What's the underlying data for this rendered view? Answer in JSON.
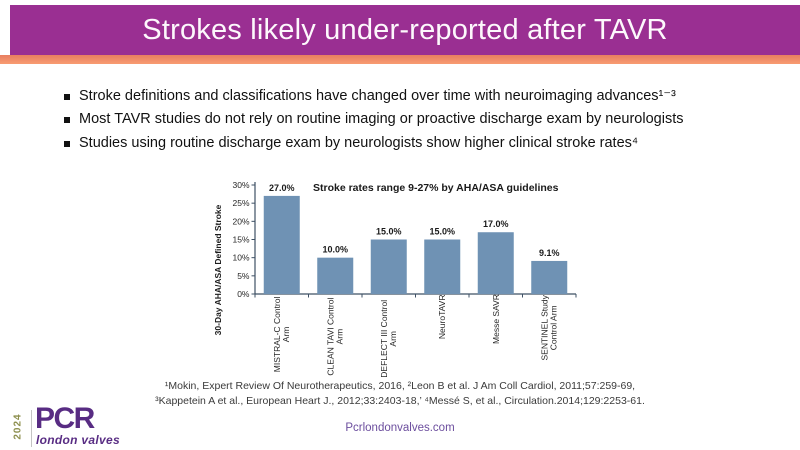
{
  "slide": {
    "title": "Strokes likely under-reported after TAVR",
    "bullets": [
      "Stroke definitions and classifications have changed over time with neuroimaging advances¹⁻³",
      "Most TAVR studies do not rely on routine imaging or proactive discharge exam by neurologists",
      "Studies using routine discharge exam by neurologists show higher clinical stroke rates⁴"
    ],
    "references": [
      "¹Mokin, Expert Review Of Neurotherapeutics, 2016, ²Leon B et al. J Am Coll Cardiol, 2011;57:259-69,",
      "³Kappetein A et al., European Heart J., 2012;33:2403-18,’ ⁴Messé S, et al., Circulation.2014;129:2253-61."
    ],
    "footer_link": "Pcrlondonvalves.com",
    "logo": {
      "year": "2024",
      "brand": "PCR",
      "sub": "london valves"
    }
  },
  "colors": {
    "header_bg": "#9A2F92",
    "accent_strip_top": "#E87E60",
    "accent_strip_bottom": "#F89C72",
    "bar_fill": "#6F92B4",
    "axis": "#3E5064",
    "logo_purple": "#582C83",
    "logo_year": "#8D8F4E",
    "footer_link": "#6C4E9E"
  },
  "chart_data": {
    "type": "bar",
    "title": "Stroke rates range 9-27% by AHA/ASA guidelines",
    "ylabel": "30-Day AHA/ASA Defined Stroke",
    "xlabel": "",
    "categories": [
      "MISTRAL-C Control Arm",
      "CLEAN TAVI Control Arm",
      "DEFLECT III Control Arm",
      "NeuroTAVR",
      "Messe SAVR",
      "SENTINEL Study Control Arm"
    ],
    "category_lines": [
      [
        "MISTRAL-C Control",
        "Arm"
      ],
      [
        "CLEAN TAVI Control",
        "Arm"
      ],
      [
        "DEFLECT III Control",
        "Arm"
      ],
      [
        "NeuroTAVR"
      ],
      [
        "Messe SAVR"
      ],
      [
        "SENTINEL Study",
        "Control Arm"
      ]
    ],
    "values": [
      27.0,
      10.0,
      15.0,
      15.0,
      17.0,
      9.1
    ],
    "value_labels": [
      "27.0%",
      "10.0%",
      "15.0%",
      "15.0%",
      "17.0%",
      "9.1%"
    ],
    "ylim": [
      0,
      30
    ],
    "ytick_step": 5,
    "ytick_labels": [
      "0%",
      "5%",
      "10%",
      "15%",
      "20%",
      "25%",
      "30%"
    ],
    "grid": false,
    "legend": null
  }
}
